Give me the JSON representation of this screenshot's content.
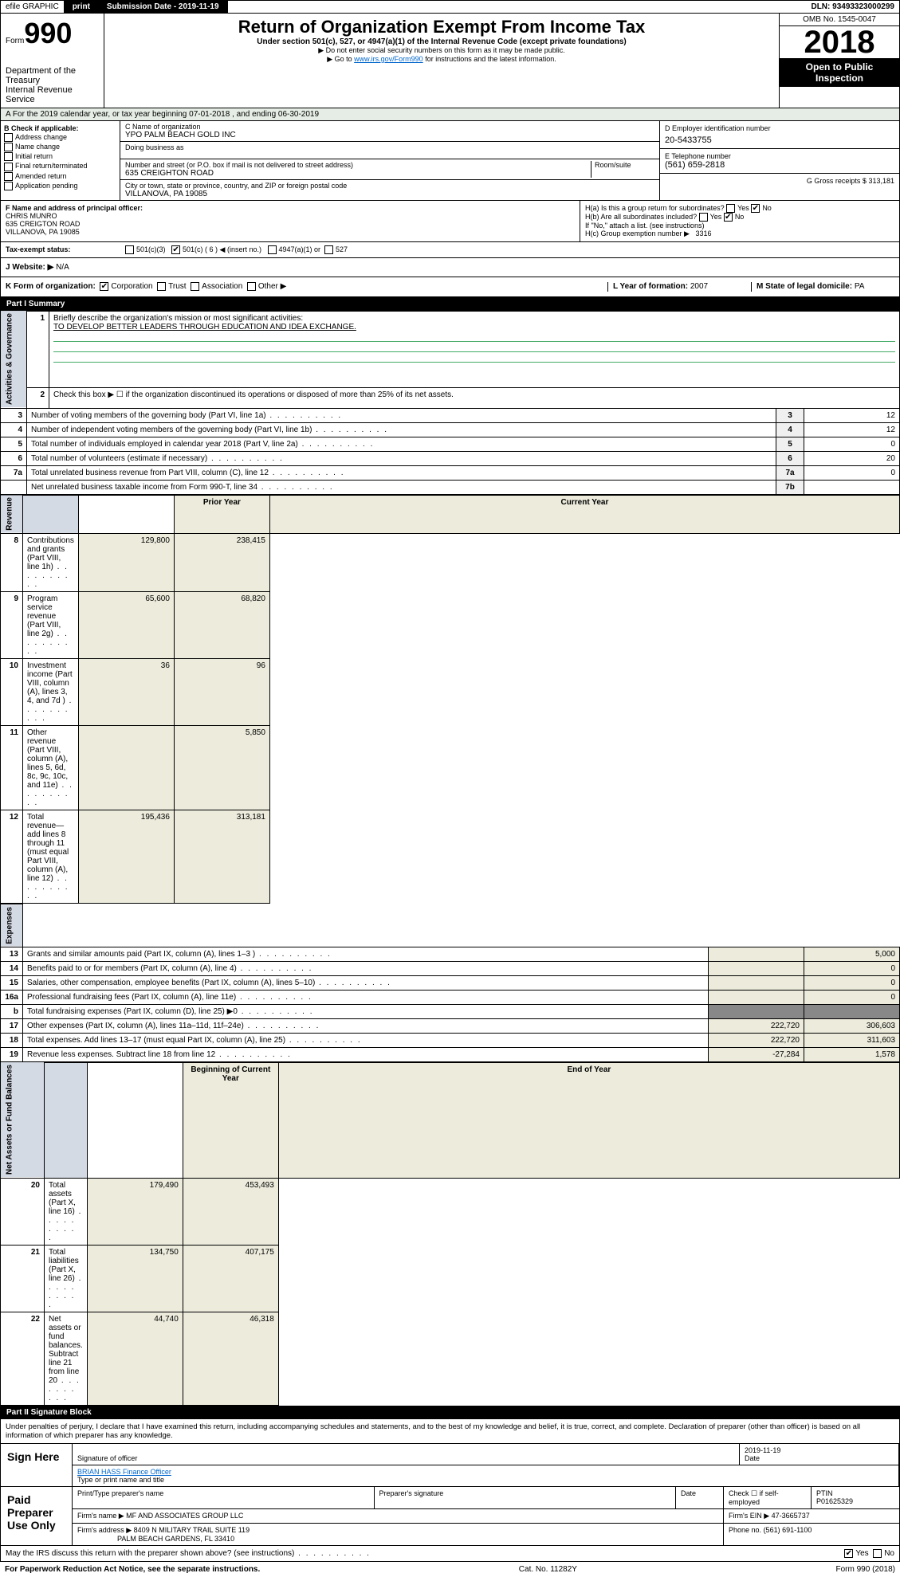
{
  "topbar": {
    "efile": "efile GRAPHIC",
    "print": "print",
    "subdate_lbl": "Submission Date - 2019-11-19",
    "dln": "DLN: 93493323000299"
  },
  "header": {
    "form_word": "Form",
    "form_num": "990",
    "dept": "Department of the Treasury\nInternal Revenue Service",
    "title": "Return of Organization Exempt From Income Tax",
    "sub": "Under section 501(c), 527, or 4947(a)(1) of the Internal Revenue Code (except private foundations)",
    "note1": "▶ Do not enter social security numbers on this form as it may be made public.",
    "note2_pre": "▶ Go to ",
    "note2_link": "www.irs.gov/Form990",
    "note2_post": " for instructions and the latest information.",
    "omb": "OMB No. 1545-0047",
    "year": "2018",
    "open": "Open to Public\nInspection"
  },
  "period": "A For the 2019 calendar year, or tax year beginning 07-01-2018    , and ending 06-30-2019",
  "colB": {
    "hdr": "B Check if applicable:",
    "items": [
      "Address change",
      "Name change",
      "Initial return",
      "Final return/terminated",
      "Amended return",
      "Application pending"
    ]
  },
  "colC": {
    "name_lbl": "C Name of organization",
    "name": "YPO PALM BEACH GOLD INC",
    "dba_lbl": "Doing business as",
    "addr_lbl": "Number and street (or P.O. box if mail is not delivered to street address)",
    "addr": "635 CREIGHTON ROAD",
    "room_lbl": "Room/suite",
    "city_lbl": "City or town, state or province, country, and ZIP or foreign postal code",
    "city": "VILLANOVA, PA  19085"
  },
  "colD": {
    "lbl": "D Employer identification number",
    "val": "20-5433755"
  },
  "colE": {
    "lbl": "E Telephone number",
    "val": "(561) 659-2818"
  },
  "colG": {
    "lbl": "G Gross receipts $",
    "val": "313,181"
  },
  "colF": {
    "lbl": "F  Name and address of principal officer:",
    "name": "CHRIS MUNRO",
    "addr1": "635 CREIGTON ROAD",
    "addr2": "VILLANOVA, PA  19085"
  },
  "colH": {
    "a_lbl": "H(a)  Is this a group return for subordinates?",
    "a_yes": "Yes",
    "a_no": "No",
    "b_lbl": "H(b)  Are all subordinates included?",
    "b_yes": "Yes",
    "b_no": "No",
    "b_note": "If \"No,\" attach a list. (see instructions)",
    "c_lbl": "H(c)  Group exemption number ▶",
    "c_val": "3316"
  },
  "taxstatus": {
    "lbl": "Tax-exempt status:",
    "opt1": "501(c)(3)",
    "opt2": "501(c) ( 6 ) ◀ (insert no.)",
    "opt3": "4947(a)(1) or",
    "opt4": "527"
  },
  "website": {
    "lbl": "J   Website: ▶",
    "val": "N/A"
  },
  "kform": {
    "lbl": "K Form of organization:",
    "opts": [
      "Corporation",
      "Trust",
      "Association",
      "Other ▶"
    ],
    "l_lbl": "L Year of formation:",
    "l_val": "2007",
    "m_lbl": "M State of legal domicile:",
    "m_val": "PA"
  },
  "part1": {
    "title": "Part I      Summary",
    "q1_lbl": "Briefly describe the organization's mission or most significant activities:",
    "q1_val": "TO DEVELOP BETTER LEADERS THROUGH EDUCATION AND IDEA EXCHANGE.",
    "q2": "Check this box ▶ ☐ if the organization discontinued its operations or disposed of more than 25% of its net assets.",
    "rows_gov": [
      {
        "n": "3",
        "t": "Number of voting members of the governing body (Part VI, line 1a)",
        "b": "3",
        "v": "12"
      },
      {
        "n": "4",
        "t": "Number of independent voting members of the governing body (Part VI, line 1b)",
        "b": "4",
        "v": "12"
      },
      {
        "n": "5",
        "t": "Total number of individuals employed in calendar year 2018 (Part V, line 2a)",
        "b": "5",
        "v": "0"
      },
      {
        "n": "6",
        "t": "Total number of volunteers (estimate if necessary)",
        "b": "6",
        "v": "20"
      },
      {
        "n": "7a",
        "t": "Total unrelated business revenue from Part VIII, column (C), line 12",
        "b": "7a",
        "v": "0"
      },
      {
        "n": "",
        "t": "Net unrelated business taxable income from Form 990-T, line 34",
        "b": "7b",
        "v": ""
      }
    ],
    "py_hdr": "Prior Year",
    "cy_hdr": "Current Year",
    "rows_rev": [
      {
        "n": "8",
        "t": "Contributions and grants (Part VIII, line 1h)",
        "py": "129,800",
        "cy": "238,415"
      },
      {
        "n": "9",
        "t": "Program service revenue (Part VIII, line 2g)",
        "py": "65,600",
        "cy": "68,820"
      },
      {
        "n": "10",
        "t": "Investment income (Part VIII, column (A), lines 3, 4, and 7d )",
        "py": "36",
        "cy": "96"
      },
      {
        "n": "11",
        "t": "Other revenue (Part VIII, column (A), lines 5, 6d, 8c, 9c, 10c, and 11e)",
        "py": "",
        "cy": "5,850"
      },
      {
        "n": "12",
        "t": "Total revenue—add lines 8 through 11 (must equal Part VIII, column (A), line 12)",
        "py": "195,436",
        "cy": "313,181"
      }
    ],
    "rows_exp": [
      {
        "n": "13",
        "t": "Grants and similar amounts paid (Part IX, column (A), lines 1–3 )",
        "py": "",
        "cy": "5,000"
      },
      {
        "n": "14",
        "t": "Benefits paid to or for members (Part IX, column (A), line 4)",
        "py": "",
        "cy": "0"
      },
      {
        "n": "15",
        "t": "Salaries, other compensation, employee benefits (Part IX, column (A), lines 5–10)",
        "py": "",
        "cy": "0"
      },
      {
        "n": "16a",
        "t": "Professional fundraising fees (Part IX, column (A), line 11e)",
        "py": "",
        "cy": "0"
      },
      {
        "n": "b",
        "t": "Total fundraising expenses (Part IX, column (D), line 25) ▶0",
        "py": "—",
        "cy": "—"
      },
      {
        "n": "17",
        "t": "Other expenses (Part IX, column (A), lines 11a–11d, 11f–24e)",
        "py": "222,720",
        "cy": "306,603"
      },
      {
        "n": "18",
        "t": "Total expenses. Add lines 13–17 (must equal Part IX, column (A), line 25)",
        "py": "222,720",
        "cy": "311,603"
      },
      {
        "n": "19",
        "t": "Revenue less expenses. Subtract line 18 from line 12",
        "py": "-27,284",
        "cy": "1,578"
      }
    ],
    "bcy_hdr": "Beginning of Current Year",
    "ecy_hdr": "End of Year",
    "rows_net": [
      {
        "n": "20",
        "t": "Total assets (Part X, line 16)",
        "py": "179,490",
        "cy": "453,493"
      },
      {
        "n": "21",
        "t": "Total liabilities (Part X, line 26)",
        "py": "134,750",
        "cy": "407,175"
      },
      {
        "n": "22",
        "t": "Net assets or fund balances. Subtract line 21 from line 20",
        "py": "44,740",
        "cy": "46,318"
      }
    ],
    "side_gov": "Activities & Governance",
    "side_rev": "Revenue",
    "side_exp": "Expenses",
    "side_net": "Net Assets or Fund Balances"
  },
  "part2": {
    "title": "Part II     Signature Block",
    "decl": "Under penalties of perjury, I declare that I have examined this return, including accompanying schedules and statements, and to the best of my knowledge and belief, it is true, correct, and complete. Declaration of preparer (other than officer) is based on all information of which preparer has any knowledge.",
    "sign_here": "Sign Here",
    "sig_officer": "Signature of officer",
    "sig_date": "2019-11-19",
    "date_lbl": "Date",
    "name_title": "BRIAN HASS Finance Officer",
    "name_title_lbl": "Type or print name and title",
    "paid": "Paid Preparer Use Only",
    "prep_name_lbl": "Print/Type preparer's name",
    "prep_sig_lbl": "Preparer's signature",
    "prep_date_lbl": "Date",
    "self_lbl": "Check ☐ if self-employed",
    "ptin_lbl": "PTIN",
    "ptin": "P01625329",
    "firm_name_lbl": "Firm's name   ▶",
    "firm_name": "MF AND ASSOCIATES GROUP LLC",
    "firm_ein_lbl": "Firm's EIN ▶",
    "firm_ein": "47-3665737",
    "firm_addr_lbl": "Firm's address ▶",
    "firm_addr1": "8409 N MILITARY TRAIL SUITE 119",
    "firm_addr2": "PALM BEACH GARDENS, FL  33410",
    "phone_lbl": "Phone no.",
    "phone": "(561) 691-1100",
    "discuss": "May the IRS discuss this return with the preparer shown above? (see instructions)",
    "yes": "Yes",
    "no": "No"
  },
  "footer": {
    "pra": "For Paperwork Reduction Act Notice, see the separate instructions.",
    "cat": "Cat. No. 11282Y",
    "form": "Form 990 (2018)"
  }
}
